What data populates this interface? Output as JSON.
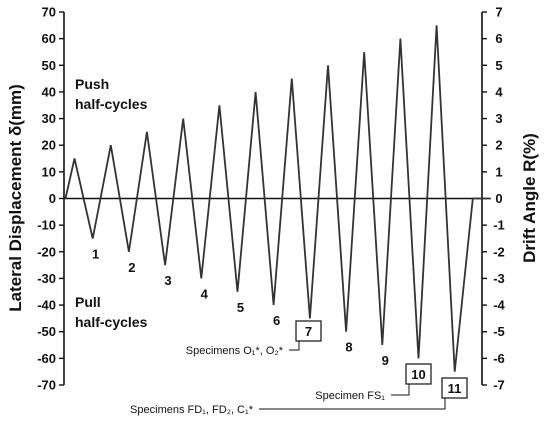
{
  "chart_data": {
    "type": "line",
    "ylabel": "Lateral Displacement δ(mm)",
    "y2label": "Drift Angle R(%)",
    "ylim": [
      -70,
      70
    ],
    "y2lim": [
      -7,
      7
    ],
    "yticks": [
      "70",
      "60",
      "50",
      "40",
      "30",
      "20",
      "10",
      "0",
      "-10",
      "-20",
      "-30",
      "-40",
      "-50",
      "-60",
      "-70"
    ],
    "y2ticks": [
      "7",
      "6",
      "5",
      "4",
      "3",
      "2",
      "1",
      "0",
      "-1",
      "-2",
      "-3",
      "-4",
      "-5",
      "-6",
      "-7"
    ],
    "grid": false,
    "push_label": [
      "Push",
      "half-cycles"
    ],
    "pull_label": [
      "Pull",
      "half-cycles"
    ],
    "series": [
      {
        "x": [
          0,
          0.25,
          0.75,
          1.25,
          1.75,
          2.25,
          2.75,
          3.25,
          3.75,
          4.25,
          4.75,
          5.25,
          5.75,
          6.25,
          6.75,
          7.25,
          7.75,
          8.25,
          8.75,
          9.25,
          9.75,
          10.25,
          10.75,
          11.25,
          11.75
        ],
        "y": [
          0,
          15,
          -15,
          20,
          -20,
          25,
          -25,
          30,
          -30,
          35,
          -35,
          40,
          -40,
          45,
          -45,
          50,
          -50,
          55,
          -55,
          60,
          -60,
          65,
          -65,
          0,
          0
        ]
      }
    ],
    "cycle_labels": [
      "1",
      "2",
      "3",
      "4",
      "5",
      "6",
      "7",
      "8",
      "9",
      "10",
      "11"
    ],
    "annotations": [
      {
        "cycle": "7",
        "text": "Specimens O₁*, O₂*"
      },
      {
        "cycle": "10",
        "text": "Specimen FS₁"
      },
      {
        "cycle": "11",
        "text": "Specimens FD₁, FD₂, C₁*"
      }
    ]
  }
}
